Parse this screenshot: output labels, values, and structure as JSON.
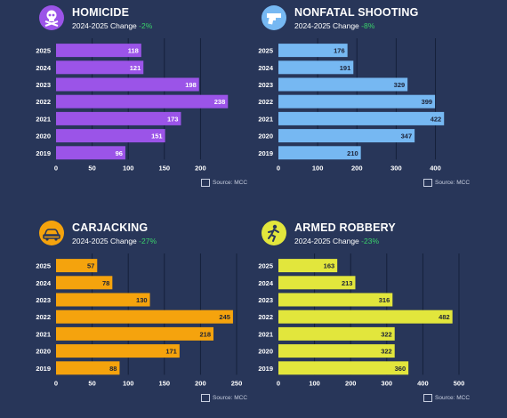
{
  "panels": [
    {
      "title": "HOMICIDE",
      "change_label": "2024-2025 Change",
      "change_value": "-2%",
      "source": "Source: MCC",
      "icon": "skull-crossbones-icon",
      "color": "#9b54e8"
    },
    {
      "title": "NONFATAL SHOOTING",
      "change_label": "2024-2025 Change",
      "change_value": "-8%",
      "source": "Source: MCC",
      "icon": "pistol-icon",
      "color": "#76b8f2"
    },
    {
      "title": "CARJACKING",
      "change_label": "2024-2025 Change",
      "change_value": "-27%",
      "source": "Source: MCC",
      "icon": "car-icon",
      "color": "#f5a30d"
    },
    {
      "title": "ARMED ROBBERY",
      "change_label": "2024-2025 Change",
      "change_value": "-23%",
      "source": "Source: MCC",
      "icon": "running-person-icon",
      "color": "#e2e63c"
    }
  ],
  "chart_data": [
    {
      "type": "bar",
      "orientation": "horizontal",
      "title": "HOMICIDE",
      "categories": [
        "2025",
        "2024",
        "2023",
        "2022",
        "2021",
        "2020",
        "2019"
      ],
      "values": [
        118,
        121,
        198,
        238,
        173,
        151,
        96
      ],
      "xticks": [
        0,
        50,
        100,
        150,
        200
      ],
      "xlim": [
        0,
        250
      ],
      "grid": true,
      "color": "#9b54e8",
      "label_color": "#ffffff"
    },
    {
      "type": "bar",
      "orientation": "horizontal",
      "title": "NONFATAL SHOOTING",
      "categories": [
        "2025",
        "2024",
        "2023",
        "2022",
        "2021",
        "2020",
        "2019"
      ],
      "values": [
        176,
        191,
        329,
        399,
        422,
        347,
        210
      ],
      "xticks": [
        0,
        100,
        200,
        300,
        400
      ],
      "xlim": [
        0,
        460
      ],
      "grid": true,
      "color": "#76b8f2",
      "label_color": "#1c2236"
    },
    {
      "type": "bar",
      "orientation": "horizontal",
      "title": "CARJACKING",
      "categories": [
        "2025",
        "2024",
        "2023",
        "2022",
        "2021",
        "2020",
        "2019"
      ],
      "values": [
        57,
        78,
        130,
        245,
        218,
        171,
        88
      ],
      "xticks": [
        0,
        50,
        100,
        150,
        200,
        250
      ],
      "xlim": [
        0,
        250
      ],
      "grid": true,
      "color": "#f5a30d",
      "label_color": "#1c2236"
    },
    {
      "type": "bar",
      "orientation": "horizontal",
      "title": "ARMED ROBBERY",
      "categories": [
        "2025",
        "2024",
        "2023",
        "2022",
        "2021",
        "2020",
        "2019"
      ],
      "values": [
        163,
        213,
        316,
        482,
        322,
        322,
        360
      ],
      "xticks": [
        0,
        100,
        200,
        300,
        400,
        500
      ],
      "xlim": [
        0,
        500
      ],
      "grid": true,
      "color": "#e2e63c",
      "label_color": "#1c2236"
    }
  ]
}
